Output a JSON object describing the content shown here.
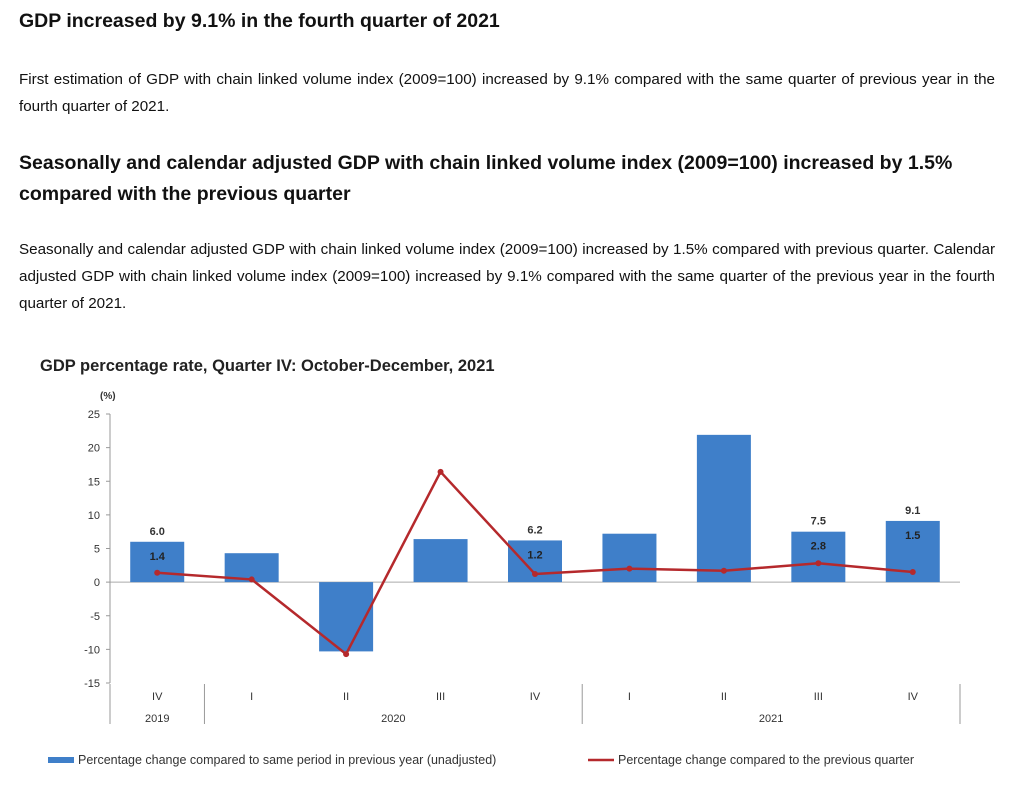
{
  "article": {
    "heading1": "GDP increased by 9.1% in the fourth quarter of 2021",
    "para1": "First estimation of GDP with chain linked volume index (2009=100) increased by 9.1% compared with the same quarter of previous year in the fourth quarter of 2021.",
    "heading2": "Seasonally and calendar adjusted GDP with chain linked volume index (2009=100) increased by 1.5% compared with the previous quarter",
    "para2": "Seasonally and calendar adjusted GDP with chain linked volume index (2009=100) increased by 1.5% compared with previous quarter. Calendar adjusted GDP with chain linked volume index (2009=100) increased by 9.1% compared with the same quarter of the previous year in the fourth quarter of 2021."
  },
  "chart_data": {
    "type": "bar",
    "title": "GDP percentage rate, Quarter IV: October-December, 2021",
    "ylabel": "(%)",
    "ylim": [
      -15,
      25
    ],
    "yticks": [
      25,
      20,
      15,
      10,
      5,
      0,
      -5,
      -10,
      -15
    ],
    "categories": [
      "IV",
      "I",
      "II",
      "III",
      "IV",
      "I",
      "II",
      "III",
      "IV"
    ],
    "years": [
      {
        "label": "2019",
        "span": [
          0,
          0
        ]
      },
      {
        "label": "2020",
        "span": [
          1,
          4
        ]
      },
      {
        "label": "2021",
        "span": [
          5,
          8
        ]
      }
    ],
    "series": [
      {
        "name": "Percentage change compared to same period in previous year (unadjusted)",
        "kind": "bar",
        "color": "#3f7fc9",
        "values": [
          6.0,
          4.3,
          -10.3,
          6.4,
          6.2,
          7.2,
          21.9,
          7.5,
          9.1
        ],
        "labels": [
          "6.0",
          null,
          null,
          null,
          "6.2",
          null,
          null,
          "7.5",
          "9.1"
        ]
      },
      {
        "name": "Percentage change compared to the previous quarter",
        "kind": "line",
        "color": "#b5292c",
        "values": [
          1.4,
          0.4,
          -10.7,
          16.4,
          1.2,
          2.0,
          1.7,
          2.8,
          1.5
        ],
        "labels": [
          "1.4",
          null,
          null,
          null,
          "1.2",
          null,
          null,
          "2.8",
          "1.5"
        ]
      }
    ],
    "legend": "bottom"
  }
}
